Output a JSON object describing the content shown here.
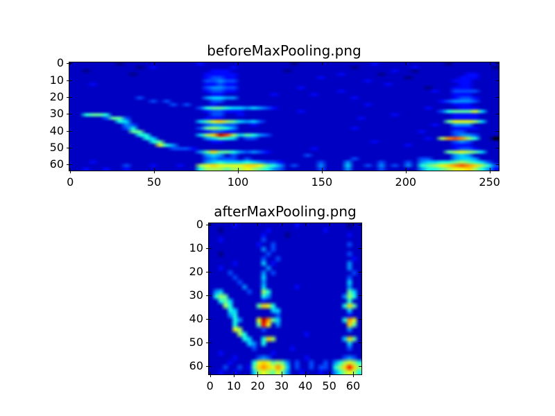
{
  "figure": {
    "background_color": "#ffffff",
    "heatmap_background_color": "#000080"
  },
  "chart_data": [
    {
      "type": "heatmap",
      "title": "beforeMaxPooling.png",
      "xlabel": "",
      "ylabel": "",
      "x_ticks": [
        0,
        50,
        100,
        150,
        200,
        250
      ],
      "y_ticks": [
        0,
        10,
        20,
        30,
        40,
        50,
        60
      ],
      "x_range": [
        0,
        255
      ],
      "y_range": [
        0,
        63
      ],
      "y_inverted": true,
      "colormap": "jet",
      "grid": false,
      "legend": "none",
      "description": "Spectrogram-like feature map: descending whistle contour from (x=10,y=30) to (x=75,y=50); bright harmonic stack at x=78-125 with bars at y=10,15,20,26,33,37,41,50,59 (red hotspot near x=90,y=41); faint noise mid-band; second harmonic stack at x=216-248 with bars at y=27,34,42,50,59; bright band along bottom edge under both stacks",
      "grid_cols": 64,
      "grid_rows": 32,
      "intensity_scale": "hex 0-f maps to jet colormap 0-1",
      "intensity_rows": [
        "1111111011111111111211111111111110111111111112111111111101111111",
        "1111111111012111111111112111111111111111110111111112111111111110",
        "1101111111111111111112221111111101111111111111112110111111111111",
        "1111111110111111111122222111111111111111211111011111111111122111",
        "1111111111111111111123322111111111111211111111111101111111222111",
        "1111111111111111111133433111111111111111111121111111111112221111",
        "1112111111111111111122322111111111111111111111121111111111221111",
        "1111111111111111111134433111111111211111111111111111101112221111",
        "1111111111111111111123322111111111111111211111111111112113333111",
        "1111111111111111111112211111112111112111111111111111111112221111",
        "1111111111311111111145544111111111111111112111111111111112332111",
        "1111111111113131111113311111111111111111111111111111111234443111",
        "1111111111111113131112111111111111111111111121111111111112221111",
        "1111111111111111111367765545432111111111111111111111121111222111",
        "1111111111111111111123322211111111211111111111111111111367779511",
        "1167761111111111111113311211111111111111111111112111111112222111",
        "1111137731111111111122211111111111111111111211111111111112222111",
        "1111111651111111111579a87545311111111111111111111111111179998511",
        "1111111143111111111134433112111111111111111111111111112114441111",
        "1111111136111111111378764111111111111111112111111111111112222111",
        "1111111117711111111123322111111111111111111111111111211113311111",
        "111111111166111111158aec8576431111111111111111111111111113443111",
        "11111111111651111111457651331111111111111111111111111218bcb8611",
        "1111111111116711111112211111111111111111111112111111111113431111",
        "1111111111111964111111111111111111111111111111111121111112221111",
        "1111111111111113332111111111111111112111111111111111111112332111",
        "111111111111111111147a776434321111111111111111111111111178987511",
        "1111111111111111111145413111111111131111111111111111111114541111",
        "1111111111111111111134333131111111111111113111111111331114554111",
        "1112111111111111111145655565433211111311141111311131455667876531",
        "111111113111211121189a9999aa9764131114111511314131416789abcba863",
        "11211211211111111116888788987643111113111411113111114667899a8642"
      ]
    },
    {
      "type": "heatmap",
      "title": "afterMaxPooling.png",
      "xlabel": "",
      "ylabel": "",
      "x_ticks": [
        0,
        10,
        20,
        30,
        40,
        50,
        60
      ],
      "y_ticks": [
        0,
        10,
        20,
        30,
        40,
        50,
        60
      ],
      "x_range": [
        0,
        63
      ],
      "y_range": [
        0,
        63
      ],
      "y_inverted": true,
      "colormap": "jet",
      "grid": false,
      "legend": "none",
      "description": "Max-pooled version (x compressed 4x): whistle contour from (x=3,y=29) descending to (x=17,y=50) with yellow-green spot near (11,44); pooled harmonic stack at x=20-27 with blobs at y=28,33,41 (red),47 and bright bottom bar y=57-62; second stack at x=56-62 with blobs at y=29,33,41,47 and bright bottom bar",
      "grid_cols": 32,
      "grid_rows": 32,
      "intensity_scale": "hex 0-f maps to jet colormap 0-1",
      "intensity_rows": [
        "11111211111111111121111111111011",
        "11011111111121111111111121111111",
        "11111111111211110111111111111211",
        "11211111111311111111111111111111",
        "11111111112113111111111111111311",
        "11111111111413111111111111111111",
        "11011111111131111111111111111311",
        "11111111111311311111111111111121",
        "11111211111512111111111111111411",
        "11211111111141111111111111111411",
        "11113111111413111111111111111131",
        "11111311111511111111111111111311",
        "11111131111411111111111111111511",
        "11111114111511111121111111111411",
        "14511111311861111111111111111751",
        "16871111111641111111111111114861",
        "11675111111211111111111111111611",
        "11186111117a96111111111111116a71",
        "11116511111115511111111111111511",
        "11114611111111311111111111111211",
        "11111641119eb7511111111111116b91",
        "11111611117d91411111111111111a71",
        "11111981111311111111111111111411",
        "11111186111111111111211111111111",
        "111111165116a8111111111111115a71",
        "11111111541611111111111111111511",
        "11111111131111111211111111111311",
        "11211111111112111111111111111111",
        "11111211113431111111211111113431",
        "11112111169a97874131131131468986",
        "1113113127aba9b9513113133168ada8",
        "11211211158987974112111211468986"
      ]
    }
  ]
}
